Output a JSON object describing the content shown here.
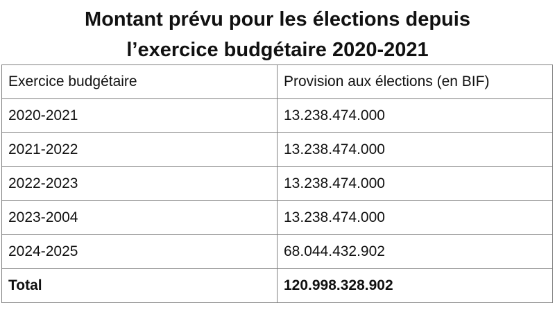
{
  "title": {
    "line1": "Montant prévu pour les élections depuis",
    "line2": "l’exercice budgétaire 2020-2021"
  },
  "table": {
    "headers": [
      "Exercice budgétaire",
      "Provision aux élections (en BIF)"
    ],
    "rows": [
      [
        "2020-2021",
        "13.238.474.000"
      ],
      [
        "2021-2022",
        "13.238.474.000"
      ],
      [
        "2022-2023",
        "13.238.474.000"
      ],
      [
        "2023-2004",
        "13.238.474.000"
      ],
      [
        "2024-2025",
        "68.044.432.902"
      ]
    ],
    "total": [
      "Total",
      "120.998.328.902"
    ]
  }
}
